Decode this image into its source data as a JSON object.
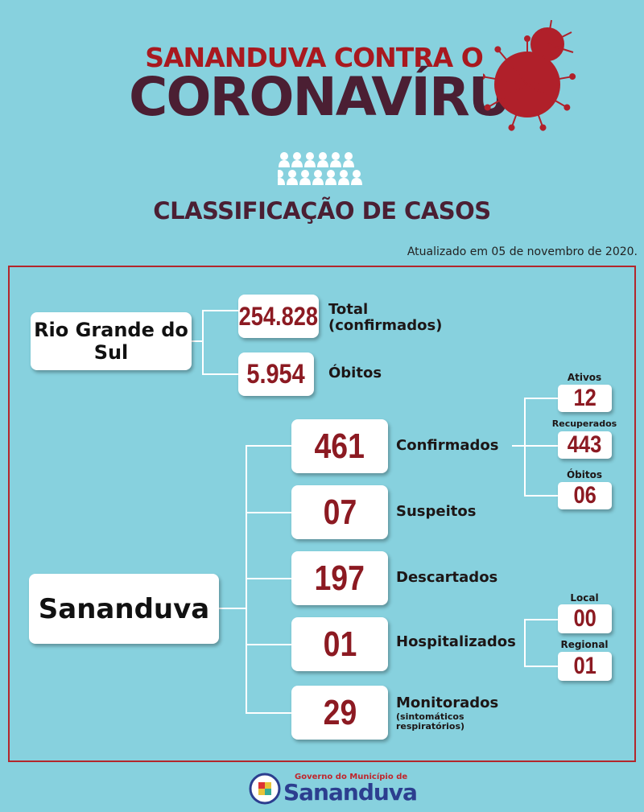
{
  "header": {
    "line1": "SANANDUVA CONTRA O",
    "line2": "CORONAVÍRUS",
    "subtitle": "CLASSIFICAÇÃO DE CASOS",
    "updated": "Atualizado em 05 de novembro de 2020.",
    "icons": [
      "virus-icon",
      "people-group-icon"
    ]
  },
  "state": {
    "name": "Rio Grande do Sul",
    "total": "254.828",
    "total_label": "Total",
    "total_sub": "(confirmados)",
    "deaths": "5.954",
    "deaths_label": "Óbitos"
  },
  "city": {
    "name": "Sananduva",
    "rows": [
      {
        "value": "461",
        "label": "Confirmados"
      },
      {
        "value": "07",
        "label": "Suspeitos"
      },
      {
        "value": "197",
        "label": "Descartados"
      },
      {
        "value": "01",
        "label": "Hospitalizados"
      },
      {
        "value": "29",
        "label": "Monitorados",
        "sub": "(sintomáticos respiratórios)"
      }
    ],
    "confirmed_breakdown": [
      {
        "label": "Ativos",
        "value": "12"
      },
      {
        "label": "Recuperados",
        "value": "443"
      },
      {
        "label": "Óbitos",
        "value": "06"
      }
    ],
    "hospital_breakdown": [
      {
        "label": "Local",
        "value": "00"
      },
      {
        "label": "Regional",
        "value": "01"
      }
    ]
  },
  "footer": {
    "line1": "Governo do Município de",
    "line2": "Sananduva"
  },
  "colors": {
    "background": "#87d1de",
    "red": "#a8191f",
    "dark": "#4b1f33",
    "number": "#8c1a22",
    "footer_blue": "#2c3e8f"
  }
}
